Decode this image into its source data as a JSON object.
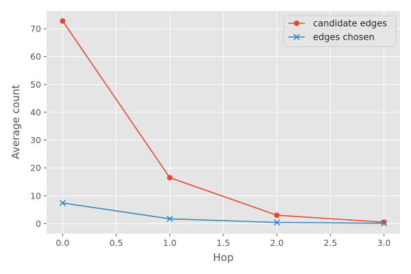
{
  "chart_data": {
    "type": "line",
    "title": "",
    "xlabel": "Hop",
    "ylabel": "Average count",
    "x": [
      0,
      1,
      2,
      3
    ],
    "xlim": [
      -0.15,
      3.15
    ],
    "ylim": [
      -3.6,
      76.4
    ],
    "xticks": [
      0.0,
      0.5,
      1.0,
      1.5,
      2.0,
      2.5,
      3.0
    ],
    "xtick_labels": [
      "0.0",
      "0.5",
      "1.0",
      "1.5",
      "2.0",
      "2.5",
      "3.0"
    ],
    "yticks": [
      0,
      10,
      20,
      30,
      40,
      50,
      60,
      70
    ],
    "ytick_labels": [
      "0",
      "10",
      "20",
      "30",
      "40",
      "50",
      "60",
      "70"
    ],
    "grid": true,
    "legend_position": "top-right",
    "series": [
      {
        "name": "candidate edges",
        "values": [
          72.8,
          16.5,
          3.0,
          0.5
        ],
        "color": "#E24A33",
        "marker": "circle"
      },
      {
        "name": "edges chosen",
        "values": [
          7.4,
          1.7,
          0.4,
          0.1
        ],
        "color": "#348ABD",
        "marker": "x"
      }
    ]
  },
  "colors": {
    "plot_background": "#E5E5E5",
    "grid": "#FFFFFF",
    "axis_text": "#555555"
  }
}
